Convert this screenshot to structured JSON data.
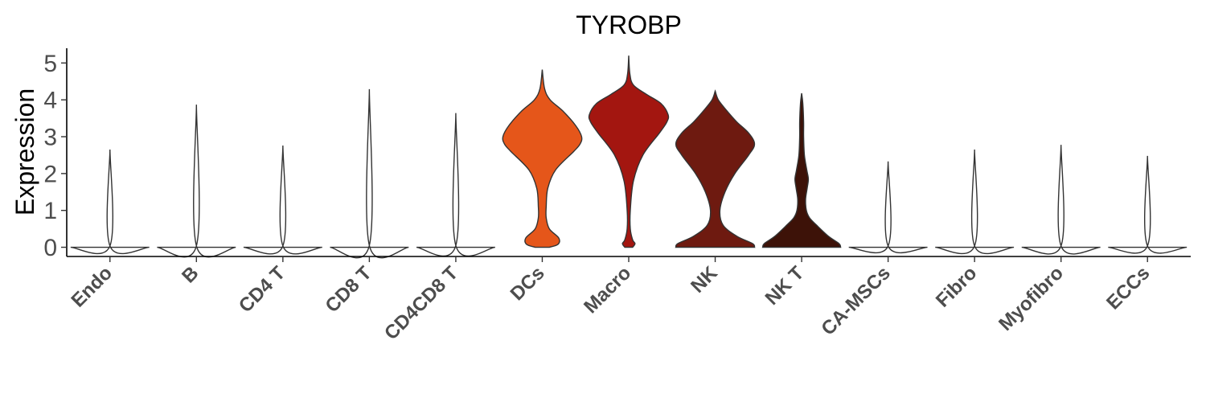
{
  "chart_data": {
    "type": "violin",
    "title": "TYROBP",
    "ylabel": "Expression",
    "xlabel": "",
    "ylim": [
      -0.25,
      5.4
    ],
    "yticks": [
      0,
      1,
      2,
      3,
      4,
      5
    ],
    "grid": false,
    "categories": [
      "Endo",
      "B",
      "CD4 T",
      "CD8 T",
      "CD4CD8 T",
      "DCs",
      "Macro",
      "NK",
      "NK T",
      "CA-MSCs",
      "Fibro",
      "Myofibro",
      "ECCs"
    ],
    "series": [
      {
        "category": "Endo",
        "max": 2.65,
        "color": "#ffffff",
        "profile": [
          [
            0,
            1
          ],
          [
            0.03,
            0.002
          ],
          [
            2.65,
            0
          ]
        ]
      },
      {
        "category": "B",
        "max": 3.87,
        "color": "#ffffff",
        "profile": [
          [
            0,
            1
          ],
          [
            0.03,
            0.002
          ],
          [
            3.87,
            0
          ]
        ]
      },
      {
        "category": "CD4 T",
        "max": 2.76,
        "color": "#ffffff",
        "profile": [
          [
            0,
            1
          ],
          [
            0.03,
            0.002
          ],
          [
            2.76,
            0
          ]
        ]
      },
      {
        "category": "CD8 T",
        "max": 4.29,
        "color": "#ffffff",
        "profile": [
          [
            0,
            1
          ],
          [
            0.04,
            0.002
          ],
          [
            4.29,
            0
          ]
        ]
      },
      {
        "category": "CD4CD8 T",
        "max": 3.64,
        "color": "#ffffff",
        "profile": [
          [
            0,
            1
          ],
          [
            0.04,
            0.002
          ],
          [
            3.64,
            0
          ]
        ]
      },
      {
        "category": "DCs",
        "max": 4.82,
        "color": "#e5561a",
        "profile": [
          [
            0,
            0.18
          ],
          [
            0.08,
            0.4
          ],
          [
            0.25,
            0.42
          ],
          [
            0.5,
            0.18
          ],
          [
            0.8,
            0.1
          ],
          [
            1.1,
            0.1
          ],
          [
            1.6,
            0.14
          ],
          [
            2.1,
            0.34
          ],
          [
            2.6,
            0.8
          ],
          [
            2.8,
            0.96
          ],
          [
            3.0,
            1.0
          ],
          [
            3.3,
            0.85
          ],
          [
            3.7,
            0.52
          ],
          [
            4.0,
            0.2
          ],
          [
            4.3,
            0.06
          ],
          [
            4.82,
            0
          ]
        ]
      },
      {
        "category": "Macro",
        "max": 5.2,
        "color": "#a31610",
        "profile": [
          [
            0,
            0.1
          ],
          [
            0.1,
            0.16
          ],
          [
            0.2,
            0.1
          ],
          [
            0.5,
            0.04
          ],
          [
            1.0,
            0.04
          ],
          [
            1.8,
            0.12
          ],
          [
            2.5,
            0.36
          ],
          [
            3.1,
            0.78
          ],
          [
            3.4,
            0.97
          ],
          [
            3.6,
            1.0
          ],
          [
            3.9,
            0.82
          ],
          [
            4.15,
            0.45
          ],
          [
            4.4,
            0.12
          ],
          [
            4.7,
            0.03
          ],
          [
            5.2,
            0
          ]
        ]
      },
      {
        "category": "NK",
        "max": 4.24,
        "color": "#6e1a10",
        "profile": [
          [
            0,
            1
          ],
          [
            0.1,
            0.95
          ],
          [
            0.3,
            0.55
          ],
          [
            0.6,
            0.2
          ],
          [
            1.0,
            0.12
          ],
          [
            1.5,
            0.25
          ],
          [
            2.0,
            0.5
          ],
          [
            2.5,
            0.85
          ],
          [
            2.8,
            1.0
          ],
          [
            3.1,
            0.85
          ],
          [
            3.4,
            0.55
          ],
          [
            3.7,
            0.3
          ],
          [
            4.0,
            0.08
          ],
          [
            4.24,
            0
          ]
        ]
      },
      {
        "category": "NK T",
        "max": 4.18,
        "color": "#3d1208",
        "profile": [
          [
            0,
            0.99
          ],
          [
            0.1,
            0.95
          ],
          [
            0.3,
            0.68
          ],
          [
            0.6,
            0.38
          ],
          [
            0.8,
            0.2
          ],
          [
            1.0,
            0.12
          ],
          [
            1.3,
            0.1
          ],
          [
            1.6,
            0.14
          ],
          [
            1.85,
            0.17
          ],
          [
            2.1,
            0.13
          ],
          [
            2.5,
            0.07
          ],
          [
            3.0,
            0.05
          ],
          [
            3.4,
            0.05
          ],
          [
            3.9,
            0.03
          ],
          [
            4.18,
            0
          ]
        ]
      },
      {
        "category": "CA-MSCs",
        "max": 2.33,
        "color": "#ffffff",
        "profile": [
          [
            0,
            1
          ],
          [
            0.03,
            0.002
          ],
          [
            2.33,
            0
          ]
        ]
      },
      {
        "category": "Fibro",
        "max": 2.65,
        "color": "#ffffff",
        "profile": [
          [
            0,
            1
          ],
          [
            0.03,
            0.002
          ],
          [
            2.65,
            0
          ]
        ]
      },
      {
        "category": "Myofibro",
        "max": 2.78,
        "color": "#ffffff",
        "profile": [
          [
            0,
            1
          ],
          [
            0.03,
            0.002
          ],
          [
            2.78,
            0
          ]
        ]
      },
      {
        "category": "ECCs",
        "max": 2.48,
        "color": "#ffffff",
        "profile": [
          [
            0,
            1
          ],
          [
            0.03,
            0.002
          ],
          [
            2.48,
            0
          ]
        ]
      }
    ]
  }
}
